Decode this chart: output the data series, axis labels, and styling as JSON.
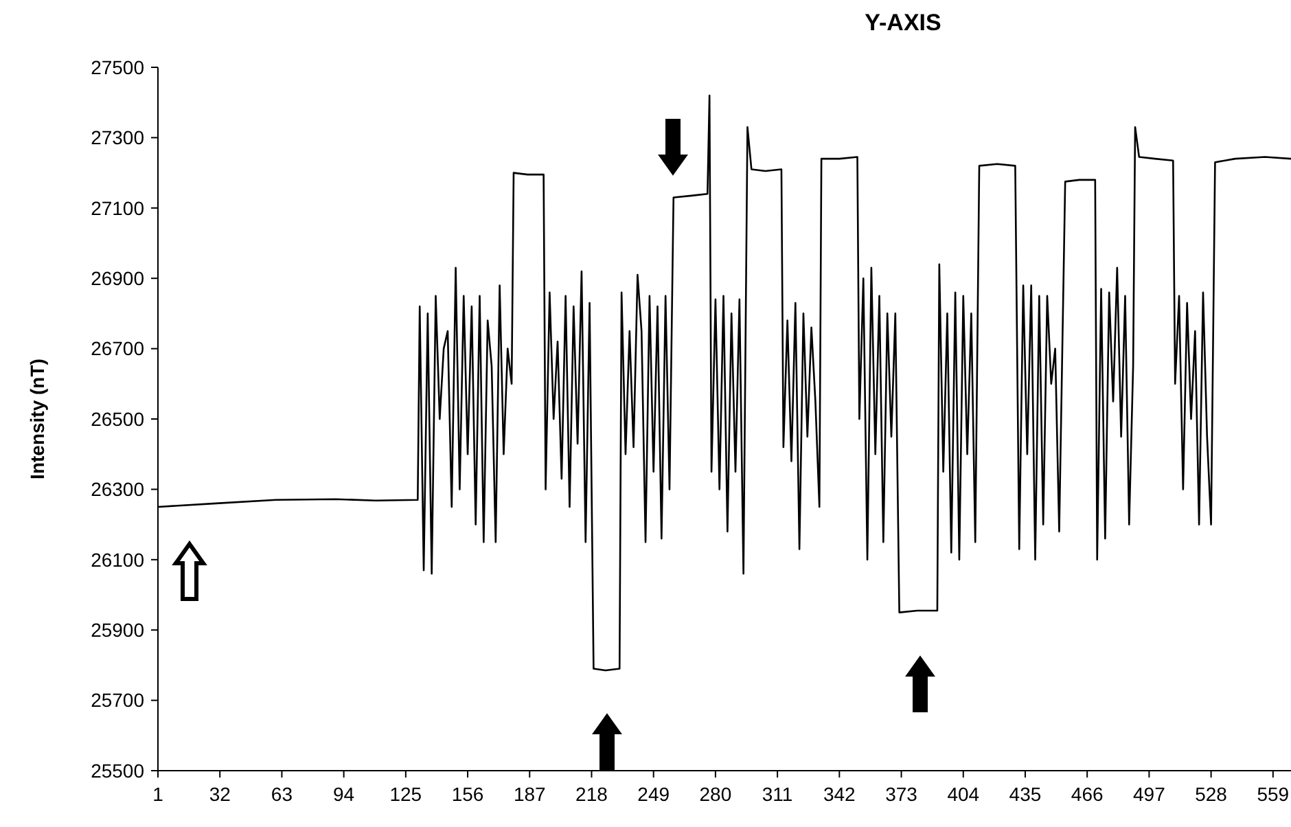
{
  "chart_data": {
    "type": "line",
    "title": "Y-AXIS",
    "ylabel": "Intensity (nT)",
    "xlim": [
      1,
      568
    ],
    "xticks": [
      1,
      32,
      63,
      94,
      125,
      156,
      187,
      218,
      249,
      280,
      311,
      342,
      373,
      404,
      435,
      466,
      497,
      528,
      559
    ],
    "ylim": [
      25500,
      27500
    ],
    "yticks": [
      25500,
      25700,
      25900,
      26100,
      26300,
      26500,
      26700,
      26900,
      27100,
      27300,
      27500
    ],
    "grid": false,
    "marker": "none",
    "line_style": "solid",
    "series": [
      {
        "color": "#000000",
        "x": [
          1,
          30,
          60,
          90,
          110,
          131,
          132,
          134,
          136,
          138,
          140,
          142,
          144,
          146,
          148,
          150,
          152,
          154,
          156,
          158,
          160,
          162,
          164,
          166,
          168,
          170,
          172,
          174,
          176,
          178,
          179,
          186,
          194,
          195,
          197,
          199,
          201,
          203,
          205,
          207,
          209,
          211,
          213,
          215,
          217,
          219,
          225,
          232,
          233,
          235,
          237,
          239,
          241,
          243,
          245,
          247,
          249,
          251,
          253,
          255,
          257,
          259,
          268,
          276,
          277,
          278,
          280,
          282,
          284,
          286,
          288,
          290,
          292,
          294,
          296,
          298,
          305,
          313,
          314,
          316,
          318,
          320,
          322,
          324,
          326,
          328,
          330,
          332,
          333,
          342,
          351,
          352,
          354,
          356,
          358,
          360,
          362,
          364,
          366,
          368,
          370,
          372,
          381,
          391,
          392,
          394,
          396,
          398,
          400,
          402,
          404,
          406,
          408,
          410,
          412,
          421,
          430,
          432,
          434,
          436,
          438,
          440,
          442,
          444,
          446,
          448,
          450,
          452,
          455,
          462,
          470,
          471,
          473,
          475,
          477,
          479,
          481,
          483,
          485,
          487,
          489,
          490,
          492,
          500,
          509,
          510,
          512,
          514,
          516,
          518,
          520,
          522,
          524,
          526,
          528,
          530,
          540,
          555,
          568
        ],
        "values": [
          26250,
          26260,
          26270,
          26272,
          26268,
          26270,
          26820,
          26070,
          26800,
          26060,
          26850,
          26500,
          26700,
          26750,
          26250,
          26930,
          26300,
          26850,
          26400,
          26820,
          26200,
          26850,
          26150,
          26780,
          26650,
          26150,
          26880,
          26400,
          26700,
          26600,
          27200,
          27195,
          27195,
          26300,
          26860,
          26500,
          26720,
          26330,
          26850,
          26250,
          26820,
          26430,
          26920,
          26150,
          26830,
          25790,
          25785,
          25790,
          26860,
          26400,
          26750,
          26420,
          26910,
          26750,
          26150,
          26850,
          26350,
          26820,
          26160,
          26850,
          26300,
          27130,
          27135,
          27140,
          27420,
          26350,
          26840,
          26300,
          26850,
          26180,
          26800,
          26350,
          26840,
          26060,
          27330,
          27210,
          27205,
          27210,
          26420,
          26780,
          26380,
          26830,
          26130,
          26800,
          26450,
          26760,
          26550,
          26250,
          27240,
          27240,
          27245,
          26500,
          26900,
          26100,
          26930,
          26400,
          26850,
          26150,
          26800,
          26450,
          26800,
          25950,
          25955,
          25955,
          26940,
          26350,
          26800,
          26120,
          26860,
          26100,
          26850,
          26400,
          26800,
          26150,
          27220,
          27225,
          27220,
          26130,
          26880,
          26400,
          26880,
          26100,
          26850,
          26200,
          26850,
          26600,
          26700,
          26180,
          27175,
          27180,
          27180,
          26100,
          26870,
          26160,
          26860,
          26550,
          26930,
          26450,
          26850,
          26200,
          26650,
          27330,
          27245,
          27240,
          27235,
          26600,
          26850,
          26300,
          26830,
          26500,
          26750,
          26200,
          26860,
          26450,
          26200,
          27230,
          27240,
          27245,
          27240
        ]
      }
    ]
  }
}
